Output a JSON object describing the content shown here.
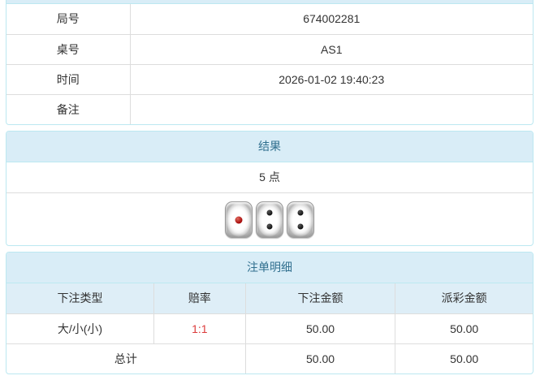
{
  "info_panel": {
    "rows": [
      {
        "label": "局号",
        "value": "674002281"
      },
      {
        "label": "桌号",
        "value": "AS1"
      },
      {
        "label": "时间",
        "value": "2026-01-02 19:40:23"
      },
      {
        "label": "备注",
        "value": ""
      }
    ]
  },
  "result_panel": {
    "title": "结果",
    "points": "5 点",
    "dice": [
      1,
      2,
      2
    ]
  },
  "bet_panel": {
    "title": "注单明细",
    "columns": [
      "下注类型",
      "赔率",
      "下注金额",
      "派彩金额"
    ],
    "rows": [
      {
        "type": "大/小(小)",
        "odds": "1:1",
        "bet": "50.00",
        "payout": "50.00"
      }
    ],
    "total": {
      "label": "总计",
      "bet": "50.00",
      "payout": "50.00"
    }
  },
  "colors": {
    "heading_bg": "#d9edf7",
    "heading_text": "#31708f",
    "panel_border": "#bce8f1",
    "cell_border": "#dddddd",
    "col_header_bg": "#deeef7",
    "odds_red": "#dc3c3c",
    "text": "#333333",
    "pip_black": "#111111",
    "pip_red": "#a00000"
  }
}
